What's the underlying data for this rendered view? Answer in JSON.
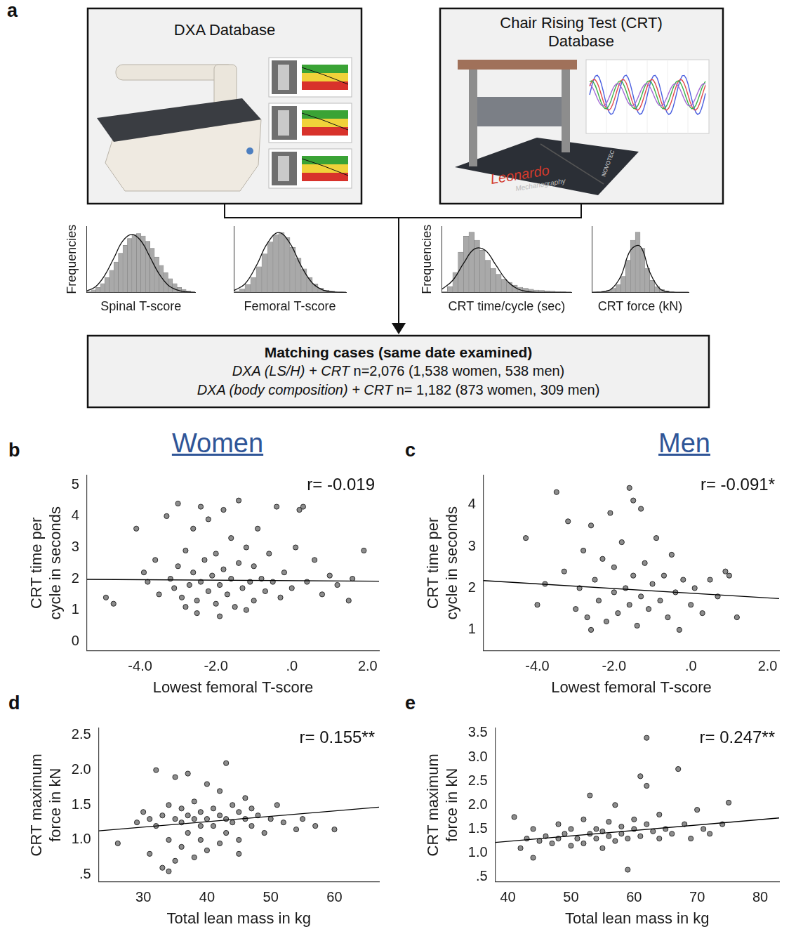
{
  "diagram": {
    "label": "a",
    "dxa_box": {
      "title": "DXA Database"
    },
    "crt_box": {
      "title": "Chair Rising Test (CRT) Database",
      "device_text": "Leonardo",
      "device_subtext": "Mechanography",
      "brand": "NOVOTEC"
    },
    "matching": {
      "title": "Matching cases (same date examined)",
      "lines": [
        {
          "italic": "DXA (LS/H) + CRT",
          "text": "n=2,076 (1,538 women, 538 men)"
        },
        {
          "italic": "DXA (body composition) + CRT",
          "text": "n= 1,182 (873 women, 309 men)"
        }
      ]
    }
  },
  "group_titles": [
    "Women",
    "Men"
  ],
  "chart_data": [
    {
      "type": "histogram",
      "xlabel": "Spinal T-score",
      "ylabel": "Frequencies",
      "color": "#a9a9a9",
      "bins": [
        -4.8,
        -4.4,
        -4.0,
        -3.6,
        -3.2,
        -2.8,
        -2.4,
        -2.0,
        -1.6,
        -1.2,
        -0.8,
        -0.4,
        0.0,
        0.4,
        0.8,
        1.2,
        1.6,
        2.0,
        2.4,
        2.8,
        3.2,
        3.6,
        4.0,
        4.4,
        4.8
      ],
      "counts": [
        2,
        5,
        10,
        18,
        30,
        45,
        62,
        80,
        96,
        110,
        118,
        120,
        115,
        104,
        90,
        72,
        55,
        40,
        28,
        18,
        10,
        6,
        3,
        1
      ],
      "curve": {
        "x": [
          -4.8,
          -4.0,
          -3.2,
          -2.4,
          -1.6,
          -0.8,
          0.0,
          0.8,
          1.6,
          2.4,
          3.2,
          4.0,
          4.8
        ],
        "y": [
          3,
          12,
          35,
          70,
          105,
          118,
          105,
          72,
          38,
          15,
          5,
          1,
          0
        ]
      },
      "xlim": [
        -4.8,
        4.8
      ],
      "ylim": [
        0,
        135
      ],
      "tick_labels": false,
      "grid": false
    },
    {
      "type": "histogram",
      "xlabel": "Femoral T-score",
      "color": "#a9a9a9",
      "bins": [
        -4.8,
        -4.4,
        -4.0,
        -3.6,
        -3.2,
        -2.8,
        -2.4,
        -2.0,
        -1.6,
        -1.2,
        -0.8,
        -0.4,
        0.0,
        0.4,
        0.8,
        1.2,
        1.6,
        2.0,
        2.4,
        2.8,
        3.2
      ],
      "counts": [
        3,
        8,
        18,
        35,
        60,
        90,
        118,
        135,
        140,
        128,
        105,
        80,
        55,
        35,
        20,
        10,
        5,
        3,
        1,
        1
      ],
      "curve": {
        "x": [
          -4.8,
          -4.0,
          -3.2,
          -2.4,
          -1.6,
          -0.8,
          0.0,
          0.8,
          1.6,
          2.4,
          3.2
        ],
        "y": [
          4,
          20,
          62,
          115,
          140,
          115,
          62,
          22,
          5,
          1,
          0
        ]
      },
      "xlim": [
        -4.8,
        3.2
      ],
      "ylim": [
        0,
        155
      ],
      "tick_labels": false,
      "grid": false
    },
    {
      "type": "histogram",
      "xlabel": "CRT time/cycle (sec)",
      "ylabel": "Frequencies",
      "color": "#a9a9a9",
      "bins": [
        0.5,
        0.75,
        1.0,
        1.25,
        1.5,
        1.75,
        2.0,
        2.25,
        2.5,
        2.75,
        3.0,
        3.25,
        3.5,
        3.75,
        4.0,
        4.25,
        4.5,
        4.75,
        5.0,
        5.25,
        5.5,
        5.75,
        6.0,
        6.25,
        6.5
      ],
      "counts": [
        2,
        15,
        50,
        100,
        140,
        150,
        130,
        105,
        80,
        60,
        45,
        33,
        25,
        18,
        13,
        10,
        8,
        6,
        5,
        4,
        3,
        2,
        2,
        1
      ],
      "curve": {
        "x": [
          0.5,
          1.0,
          1.5,
          2.0,
          2.5,
          3.0,
          3.5,
          4.0,
          4.5,
          5.0,
          5.5,
          6.0,
          6.5
        ],
        "y": [
          8,
          30,
          72,
          108,
          105,
          68,
          30,
          9,
          2,
          0,
          0,
          0,
          0
        ]
      },
      "xlim": [
        0.5,
        6.5
      ],
      "ylim": [
        0,
        165
      ],
      "tick_labels": false,
      "grid": false
    },
    {
      "type": "histogram",
      "xlabel": "CRT force (kN)",
      "color": "#a9a9a9",
      "bins": [
        0.4,
        0.5,
        0.6,
        0.7,
        0.8,
        0.9,
        1.0,
        1.1,
        1.2,
        1.3,
        1.4,
        1.5,
        1.6,
        1.7,
        1.8,
        1.9,
        2.0,
        2.1,
        2.2,
        2.3,
        2.4
      ],
      "counts": [
        1,
        2,
        3,
        5,
        10,
        20,
        40,
        80,
        130,
        150,
        110,
        60,
        30,
        14,
        7,
        4,
        2,
        1,
        1,
        1
      ],
      "curve": {
        "x": [
          0.4,
          0.6,
          0.8,
          1.0,
          1.2,
          1.4,
          1.6,
          1.8,
          2.0,
          2.2,
          2.4
        ],
        "y": [
          0,
          1,
          8,
          40,
          105,
          115,
          50,
          10,
          1,
          0,
          0
        ]
      },
      "xlim": [
        0.4,
        2.4
      ],
      "ylim": [
        0,
        165
      ],
      "tick_labels": false,
      "grid": false
    },
    {
      "type": "scatter",
      "label": "b",
      "xlabel": "Lowest femoral T-score",
      "ylabel": "CRT time per cycle in seconds",
      "annotation": "r= -0.019",
      "grid": false,
      "xlim": [
        -5.4,
        2.3
      ],
      "ylim": [
        -0.3,
        5.3
      ],
      "xticks": [
        {
          "value": -4,
          "label": "-4.0"
        },
        {
          "value": -2,
          "label": "-2.0"
        },
        {
          "value": 0,
          "label": ".0"
        },
        {
          "value": 2,
          "label": "2.0"
        }
      ],
      "yticks": [
        0,
        1,
        2,
        3,
        4,
        5
      ],
      "series": [
        {
          "type": "scatter",
          "color": "#8c8c8c",
          "x": [
            -4.9,
            -4.7,
            -4.1,
            -3.9,
            -3.8,
            -3.6,
            -3.5,
            -3.3,
            -3.2,
            -3.1,
            -3.0,
            -3.0,
            -2.9,
            -2.8,
            -2.7,
            -2.6,
            -2.6,
            -2.5,
            -2.4,
            -2.4,
            -2.3,
            -2.2,
            -2.2,
            -2.1,
            -2.0,
            -2.0,
            -1.9,
            -1.8,
            -1.8,
            -1.7,
            -1.6,
            -1.6,
            -1.5,
            -1.4,
            -1.4,
            -1.3,
            -1.2,
            -1.1,
            -1.0,
            -1.0,
            -0.9,
            -0.8,
            -0.7,
            -0.6,
            -0.5,
            -0.4,
            -0.3,
            -0.2,
            0.0,
            0.1,
            0.2,
            0.3,
            0.4,
            0.6,
            0.8,
            1.0,
            1.2,
            1.5,
            1.6,
            1.9,
            -2.5,
            -1.9,
            -2.8,
            -1.2
          ],
          "values": [
            1.4,
            1.2,
            3.6,
            2.2,
            1.9,
            2.6,
            1.5,
            4.0,
            2.0,
            1.7,
            4.4,
            2.4,
            1.4,
            2.9,
            1.8,
            3.6,
            2.2,
            1.3,
            4.3,
            1.9,
            2.6,
            1.6,
            3.9,
            2.1,
            1.2,
            2.8,
            1.8,
            4.2,
            2.3,
            1.5,
            3.3,
            2.0,
            1.1,
            4.5,
            2.5,
            1.7,
            3.0,
            1.9,
            2.4,
            1.3,
            3.6,
            2.0,
            1.6,
            2.8,
            1.9,
            4.3,
            1.4,
            2.2,
            1.7,
            3.0,
            4.2,
            4.3,
            1.9,
            2.6,
            1.5,
            2.1,
            1.8,
            1.3,
            2.0,
            2.9,
            0.9,
            0.8,
            1.1,
            1.0
          ]
        },
        {
          "type": "line",
          "color": "#000000",
          "x": [
            -5.4,
            2.3
          ],
          "values": [
            1.98,
            1.92
          ]
        }
      ]
    },
    {
      "type": "scatter",
      "label": "c",
      "xlabel": "Lowest femoral T-score",
      "ylabel": "CRT time per cycle in seconds",
      "annotation": "r= -0.091*",
      "grid": false,
      "xlim": [
        -5.4,
        2.3
      ],
      "ylim": [
        0.5,
        4.7
      ],
      "xticks": [
        {
          "value": -4,
          "label": "-4.0"
        },
        {
          "value": -2,
          "label": "-2.0"
        },
        {
          "value": 0,
          "label": ".0"
        },
        {
          "value": 2,
          "label": "2.0"
        }
      ],
      "yticks": [
        1,
        2,
        3,
        4
      ],
      "series": [
        {
          "type": "scatter",
          "color": "#8c8c8c",
          "x": [
            -4.3,
            -4.0,
            -3.5,
            -3.3,
            -3.2,
            -3.0,
            -2.9,
            -2.8,
            -2.7,
            -2.6,
            -2.5,
            -2.4,
            -2.3,
            -2.2,
            -2.1,
            -2.0,
            -2.0,
            -1.9,
            -1.8,
            -1.7,
            -1.6,
            -1.6,
            -1.5,
            -1.5,
            -1.4,
            -1.3,
            -1.3,
            -1.2,
            -1.1,
            -1.0,
            -0.9,
            -0.8,
            -0.7,
            -0.6,
            -0.5,
            -0.4,
            -0.3,
            -0.2,
            0.0,
            0.1,
            0.3,
            0.5,
            0.7,
            0.9,
            1.0,
            1.2,
            -3.8,
            -2.6
          ],
          "values": [
            3.2,
            1.6,
            4.3,
            2.4,
            3.6,
            1.5,
            2.0,
            2.9,
            1.3,
            3.5,
            2.2,
            1.7,
            2.7,
            1.2,
            3.8,
            1.9,
            2.5,
            1.4,
            3.1,
            2.0,
            4.4,
            1.6,
            4.1,
            2.3,
            1.1,
            3.9,
            1.8,
            2.6,
            1.5,
            2.1,
            3.2,
            1.7,
            2.3,
            1.3,
            2.8,
            1.9,
            1.0,
            2.2,
            1.6,
            2.0,
            1.4,
            2.2,
            1.8,
            2.4,
            2.3,
            1.3,
            2.1,
            1.0
          ]
        },
        {
          "type": "line",
          "color": "#000000",
          "x": [
            -5.4,
            2.3
          ],
          "values": [
            2.18,
            1.75
          ]
        }
      ]
    },
    {
      "type": "scatter",
      "label": "d",
      "xlabel": "Total lean mass in kg",
      "ylabel": "CRT maximum force in kN",
      "annotation": "r= 0.155**",
      "grid": false,
      "xlim": [
        23,
        67
      ],
      "ylim": [
        0.4,
        2.6
      ],
      "xticks": [
        30,
        40,
        50,
        60
      ],
      "yticks": [
        {
          "value": 0.5,
          "label": ".5"
        },
        {
          "value": 1,
          "label": "1.0"
        },
        1.5,
        {
          "value": 2,
          "label": "2.0"
        },
        2.5
      ],
      "series": [
        {
          "type": "scatter",
          "color": "#8c8c8c",
          "x": [
            26,
            29,
            30,
            31,
            31,
            32,
            32,
            33,
            33,
            34,
            34,
            35,
            35,
            35,
            36,
            36,
            36,
            37,
            37,
            37,
            38,
            38,
            38,
            39,
            39,
            39,
            40,
            40,
            40,
            41,
            41,
            42,
            42,
            42,
            43,
            43,
            43,
            44,
            44,
            45,
            45,
            46,
            46,
            47,
            47,
            48,
            49,
            50,
            51,
            52,
            54,
            55,
            57,
            60,
            34,
            45
          ],
          "values": [
            0.95,
            1.25,
            1.4,
            1.3,
            0.8,
            1.2,
            2.0,
            0.6,
            1.35,
            1.5,
            1.0,
            1.3,
            0.7,
            1.9,
            1.25,
            1.45,
            0.9,
            1.35,
            1.1,
            1.95,
            1.3,
            0.75,
            1.55,
            1.2,
            1.4,
            1.0,
            1.3,
            1.8,
            0.85,
            1.45,
            1.2,
            1.35,
            0.95,
            1.7,
            1.3,
            2.1,
            1.1,
            1.5,
            1.25,
            1.4,
            1.0,
            1.3,
            1.6,
            1.2,
            1.45,
            1.35,
            1.1,
            1.3,
            1.5,
            1.25,
            1.15,
            1.3,
            1.2,
            1.15,
            0.55,
            0.8
          ]
        },
        {
          "type": "line",
          "color": "#000000",
          "x": [
            23,
            67
          ],
          "values": [
            1.13,
            1.47
          ]
        }
      ]
    },
    {
      "type": "scatter",
      "label": "e",
      "xlabel": "Total lean mass in kg",
      "ylabel": "CRT maximum force in kN",
      "annotation": "r= 0.247**",
      "grid": false,
      "xlim": [
        38,
        83
      ],
      "ylim": [
        0.4,
        3.6
      ],
      "xticks": [
        40,
        50,
        60,
        70,
        80
      ],
      "yticks": [
        {
          "value": 0.5,
          "label": ".5"
        },
        {
          "value": 1,
          "label": "1.0"
        },
        1.5,
        {
          "value": 2,
          "label": "2.0"
        },
        2.5,
        {
          "value": 3,
          "label": "3.0"
        },
        3.5
      ],
      "series": [
        {
          "type": "scatter",
          "color": "#8c8c8c",
          "x": [
            41,
            42,
            43,
            44,
            44,
            45,
            46,
            47,
            48,
            48,
            49,
            50,
            50,
            51,
            52,
            52,
            53,
            53,
            54,
            54,
            55,
            55,
            56,
            56,
            57,
            57,
            58,
            58,
            59,
            59,
            60,
            60,
            61,
            61,
            62,
            62,
            62,
            63,
            64,
            64,
            65,
            66,
            67,
            68,
            69,
            70,
            71,
            72,
            74,
            75
          ],
          "values": [
            1.75,
            1.1,
            1.3,
            0.9,
            1.5,
            1.25,
            1.35,
            1.2,
            1.6,
            1.3,
            1.4,
            1.15,
            1.5,
            1.3,
            1.7,
            1.2,
            1.4,
            2.2,
            1.3,
            1.5,
            1.1,
            1.45,
            1.35,
            1.65,
            1.25,
            2.0,
            1.4,
            1.55,
            1.3,
            0.65,
            1.5,
            1.7,
            2.6,
            1.35,
            3.4,
            2.4,
            1.6,
            1.45,
            1.3,
            1.8,
            1.5,
            1.4,
            2.75,
            1.6,
            1.3,
            1.9,
            1.5,
            1.4,
            1.6,
            2.05
          ]
        },
        {
          "type": "line",
          "color": "#000000",
          "x": [
            38,
            83
          ],
          "values": [
            1.22,
            1.73
          ]
        }
      ]
    }
  ]
}
